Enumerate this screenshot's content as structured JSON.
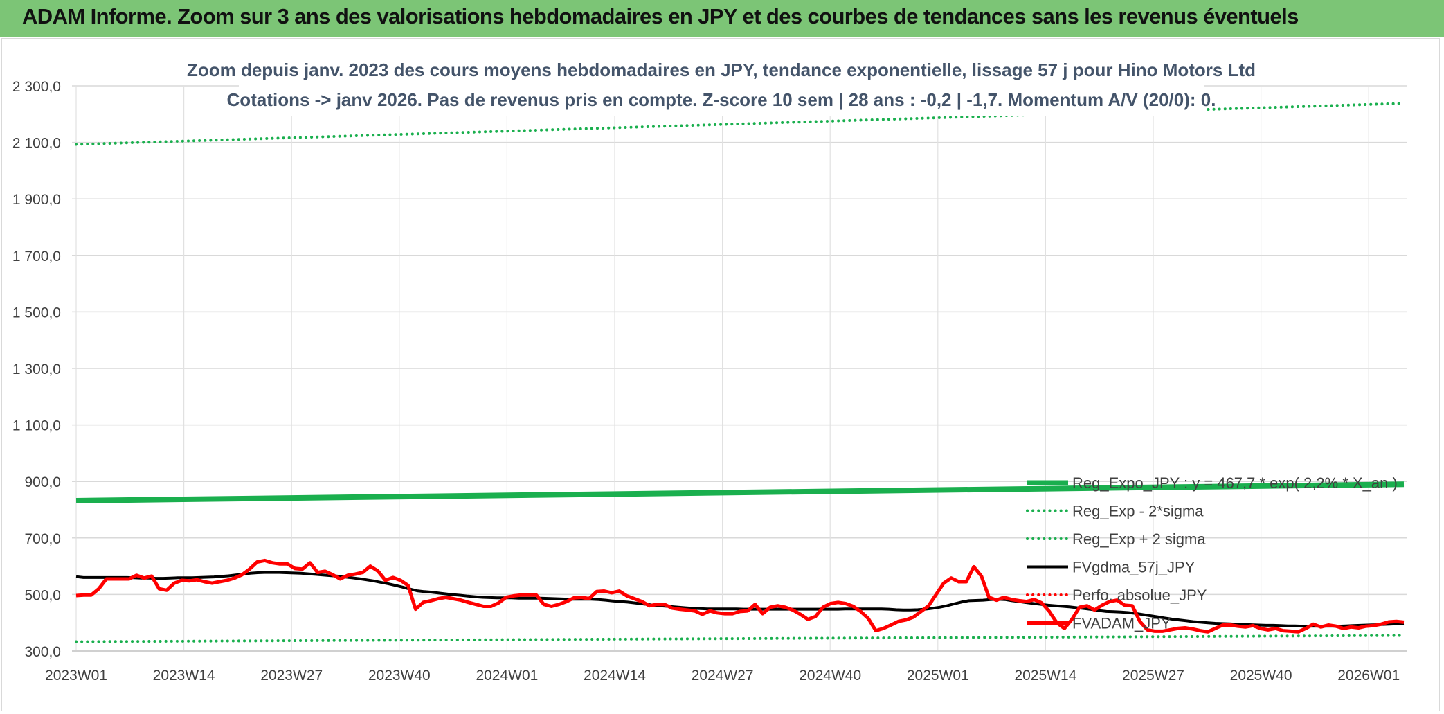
{
  "banner": {
    "title": "ADAM Informe. Zoom sur 3 ans des valorisations hebdomadaires en JPY et des courbes de tendances sans les revenus éventuels",
    "background": "#7cc576"
  },
  "chart_data": {
    "type": "line",
    "title_line1": "Zoom depuis janv. 2023 des cours moyens hebdomadaires en JPY, tendance exponentielle, lissage 57 j pour Hino Motors Ltd",
    "title_line2": "Cotations -> janv 2026. Pas de revenus pris en compte. Z-score 10 sem | 28 ans : -0,2 | -1,7. Momentum A/V (20/0): 0.",
    "y_ticks": [
      "2 300,0",
      "2 100,0",
      "1 900,0",
      "1 700,0",
      "1 500,0",
      "1 300,0",
      "1 100,0",
      "900,0",
      "700,0",
      "500,0",
      "300,0"
    ],
    "x_ticks": [
      "2023W01",
      "2023W14",
      "2023W27",
      "2023W40",
      "2024W01",
      "2024W14",
      "2024W27",
      "2024W40",
      "2025W01",
      "2025W14",
      "2025W27",
      "2025W40",
      "2026W01"
    ],
    "ylim": [
      300,
      2300
    ],
    "grid": true,
    "legend_position": "bottom-right",
    "series": [
      {
        "name": "Reg_Expo_JPY : y = 467,7 * exp( 2,2% * X_an )",
        "color": "#1aaf4e",
        "style": "solid-thick",
        "start": 832,
        "end": 890
      },
      {
        "name": "Reg_Exp - 2*sigma",
        "color": "#1aaf4e",
        "style": "dotted",
        "start": 333,
        "end": 355
      },
      {
        "name": "Reg_Exp + 2 sigma",
        "color": "#1aaf4e",
        "style": "dotted",
        "start": 2093,
        "end": 2238
      },
      {
        "name": "FVgdma_57j_JPY",
        "color": "#000000",
        "style": "solid",
        "values": [
          563,
          560,
          560,
          560,
          560,
          560,
          560,
          560,
          559,
          558,
          558,
          557,
          557,
          558,
          559,
          559,
          559,
          560,
          561,
          562,
          564,
          566,
          569,
          572,
          575,
          577,
          578,
          578,
          578,
          577,
          576,
          575,
          573,
          571,
          569,
          567,
          565,
          562,
          559,
          556,
          552,
          548,
          543,
          538,
          532,
          526,
          519,
          513,
          510,
          508,
          505,
          502,
          499,
          497,
          494,
          492,
          490,
          489,
          488,
          488,
          488,
          487,
          487,
          487,
          487,
          486,
          485,
          484,
          483,
          483,
          483,
          483,
          482,
          480,
          477,
          475,
          473,
          470,
          467,
          464,
          461,
          459,
          457,
          455,
          453,
          451,
          450,
          449,
          449,
          449,
          449,
          449,
          448,
          448,
          448,
          448,
          448,
          448,
          448,
          448,
          448,
          448,
          448,
          448,
          448,
          448,
          449,
          449,
          449,
          449,
          449,
          449,
          448,
          446,
          445,
          445,
          446,
          448,
          451,
          455,
          460,
          467,
          473,
          478,
          479,
          480,
          482,
          483,
          482,
          478,
          475,
          471,
          468,
          465,
          462,
          460,
          458,
          456,
          453,
          450,
          447,
          443,
          440,
          439,
          438,
          436,
          433,
          429,
          425,
          421,
          417,
          413,
          410,
          407,
          404,
          402,
          400,
          398,
          397,
          396,
          395,
          394,
          393,
          392,
          391,
          391,
          390,
          389,
          389,
          388,
          388,
          388,
          388,
          388,
          388,
          389,
          390,
          391,
          392,
          393,
          394,
          395,
          396,
          397
        ]
      },
      {
        "name": "Perfo. absolue_JPY",
        "color": "#ff0000",
        "style": "dotted"
      },
      {
        "name": "FVADAM_JPY",
        "color": "#ff0000",
        "style": "solid-thick",
        "values": [
          496,
          498,
          498,
          520,
          555,
          555,
          555,
          555,
          568,
          558,
          565,
          520,
          515,
          540,
          550,
          548,
          552,
          545,
          540,
          545,
          550,
          558,
          570,
          590,
          615,
          620,
          612,
          608,
          608,
          592,
          590,
          612,
          578,
          582,
          570,
          555,
          568,
          572,
          578,
          600,
          583,
          550,
          560,
          550,
          532,
          448,
          472,
          478,
          485,
          490,
          485,
          480,
          472,
          465,
          458,
          458,
          470,
          490,
          495,
          498,
          498,
          498,
          465,
          458,
          465,
          475,
          488,
          490,
          485,
          510,
          512,
          506,
          512,
          495,
          485,
          475,
          460,
          465,
          465,
          452,
          448,
          445,
          442,
          430,
          442,
          435,
          432,
          432,
          440,
          442,
          465,
          432,
          455,
          460,
          455,
          445,
          430,
          412,
          422,
          455,
          468,
          472,
          468,
          458,
          440,
          415,
          372,
          380,
          392,
          405,
          410,
          420,
          440,
          460,
          500,
          540,
          558,
          545,
          545,
          598,
          565,
          490,
          480,
          490,
          482,
          478,
          475,
          482,
          470,
          440,
          400,
          380,
          412,
          455,
          460,
          445,
          462,
          475,
          480,
          462,
          460,
          405,
          375,
          370,
          370,
          375,
          380,
          382,
          378,
          372,
          368,
          380,
          392,
          392,
          388,
          385,
          390,
          380,
          375,
          380,
          372,
          370,
          368,
          380,
          395,
          385,
          392,
          388,
          380,
          385,
          382,
          388,
          390,
          395,
          403,
          405,
          402
        ]
      }
    ]
  }
}
